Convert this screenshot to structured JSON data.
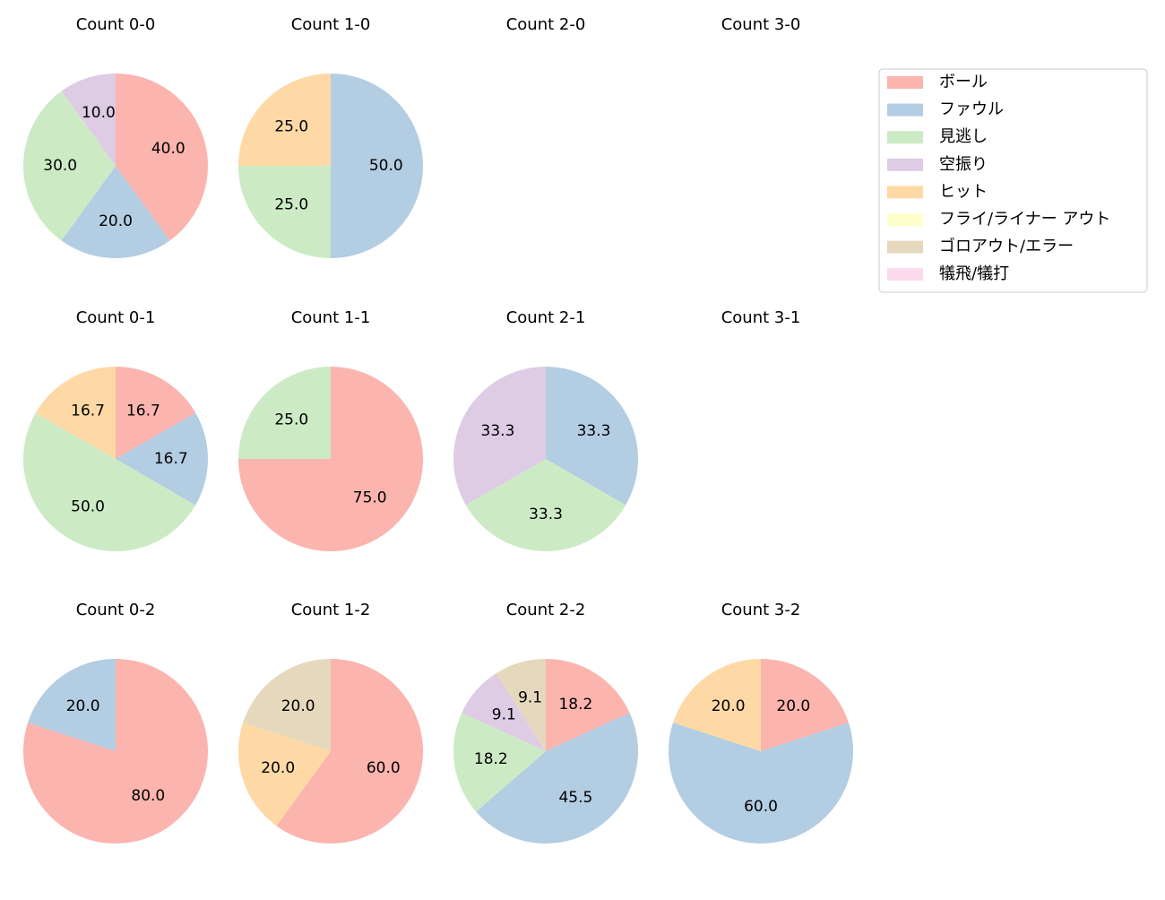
{
  "legend": {
    "labels": [
      "ボール",
      "ファウル",
      "見逃し",
      "空振り",
      "ヒット",
      "フライ/ライナー アウト",
      "ゴロアウト/エラー",
      "犠飛/犠打"
    ],
    "colors": [
      "#fbb4ae",
      "#b3cde3",
      "#ccebc5",
      "#decbe4",
      "#fed9a6",
      "#ffffcc",
      "#e5d8bd",
      "#fddaec"
    ],
    "position": "upper right"
  },
  "chart_data": [
    {
      "type": "pie",
      "title": "Count 0-0",
      "values": [
        40,
        20,
        30,
        10,
        null,
        null,
        null,
        null
      ],
      "value_labels": [
        "40.0",
        "20.0",
        "30.0",
        "10.0",
        null,
        null,
        null,
        null
      ]
    },
    {
      "type": "pie",
      "title": "Count 1-0",
      "values": [
        null,
        50,
        25,
        null,
        25,
        null,
        null,
        null
      ],
      "value_labels": [
        null,
        "50.0",
        "25.0",
        null,
        "25.0",
        null,
        null,
        null
      ]
    },
    {
      "type": "pie",
      "title": "Count 2-0",
      "values": [
        null,
        null,
        null,
        null,
        null,
        null,
        null,
        null
      ]
    },
    {
      "type": "pie",
      "title": "Count 3-0",
      "values": [
        null,
        null,
        null,
        null,
        null,
        null,
        null,
        null
      ]
    },
    {
      "type": "pie",
      "title": "Count 0-1",
      "values": [
        16.7,
        16.7,
        50,
        null,
        16.7,
        null,
        null,
        null
      ],
      "value_labels": [
        "16.7",
        "16.7",
        "50.0",
        null,
        "16.7",
        null,
        null,
        null
      ]
    },
    {
      "type": "pie",
      "title": "Count 1-1",
      "values": [
        75,
        null,
        25,
        null,
        null,
        null,
        null,
        null
      ],
      "value_labels": [
        "75.0",
        null,
        "25.0",
        null,
        null,
        null,
        null,
        null
      ]
    },
    {
      "type": "pie",
      "title": "Count 2-1",
      "values": [
        null,
        33.3,
        33.3,
        33.3,
        null,
        null,
        null,
        null
      ]
    },
    {
      "type": "pie",
      "title": "Count 3-1",
      "values": [
        null,
        null,
        null,
        null,
        null,
        null,
        null,
        null
      ]
    },
    {
      "type": "pie",
      "title": "Count 0-2",
      "values": [
        80,
        20,
        null,
        null,
        null,
        null,
        null,
        null
      ],
      "value_labels": [
        "80.0",
        "20.0",
        null,
        null,
        null,
        null,
        null,
        null
      ]
    },
    {
      "type": "pie",
      "title": "Count 1-2",
      "values": [
        60,
        null,
        null,
        null,
        20,
        null,
        20,
        null
      ],
      "value_labels": [
        "60.0",
        null,
        null,
        null,
        "20.0",
        null,
        "20.0",
        null
      ]
    },
    {
      "type": "pie",
      "title": "Count 2-2",
      "values": [
        18.2,
        45.5,
        18.2,
        9.1,
        null,
        null,
        9.1,
        null
      ]
    },
    {
      "type": "pie",
      "title": "Count 3-2",
      "values": [
        20,
        60,
        null,
        null,
        20,
        null,
        null,
        null
      ],
      "value_labels": [
        "20.0",
        "60.0",
        null,
        null,
        "20.0",
        null,
        null,
        null
      ]
    }
  ]
}
